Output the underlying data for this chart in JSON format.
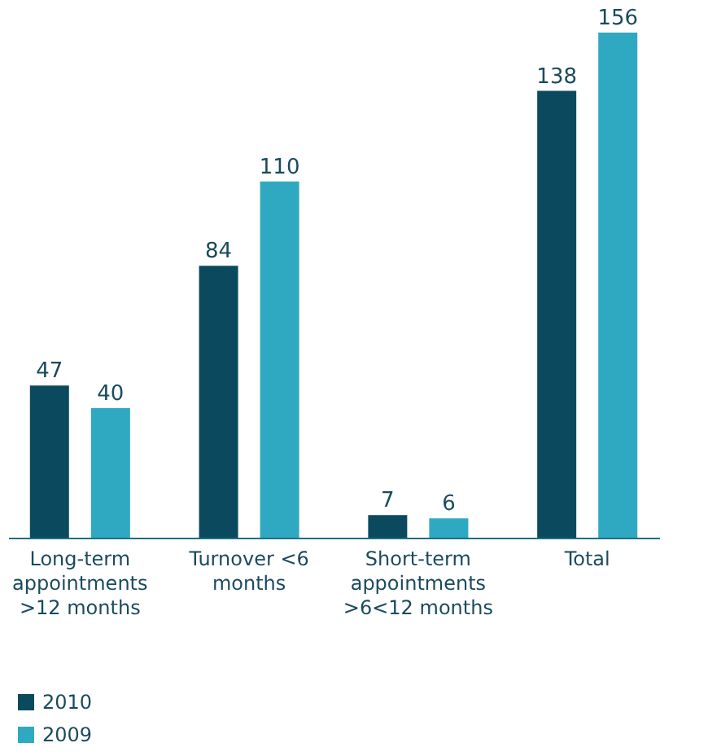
{
  "chart_data": {
    "type": "bar",
    "categories": [
      "Long-term appointments >12 months",
      "Turnover <6 months",
      "Short-term appointments >6<12 months",
      "Total"
    ],
    "series": [
      {
        "name": "2010",
        "color": "#0b4a5e",
        "values": [
          47,
          84,
          7,
          138
        ]
      },
      {
        "name": "2009",
        "color": "#2fa9c1",
        "values": [
          40,
          110,
          6,
          156
        ]
      }
    ],
    "data_labels": true,
    "legend": "bottom left"
  }
}
